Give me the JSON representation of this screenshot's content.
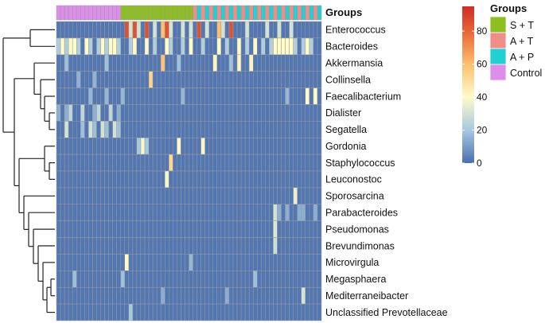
{
  "chart_data": {
    "type": "heatmap",
    "title": "",
    "annotation_title": "Groups",
    "rows": [
      "Enterococcus",
      "Bacteroides",
      "Akkermansia",
      "Collinsella",
      "Faecalibacterium",
      "Dialister",
      "Segatella",
      "Gordonia",
      "Staphylococcus",
      "Leuconostoc",
      "Sporosarcina",
      "Parabacteroides",
      "Pseudomonas",
      "Brevundimonas",
      "Microvirgula",
      "Megasphaera",
      "Mediterraneibacter",
      "Unclassified Prevotellaceae"
    ],
    "n_columns": 66,
    "column_groups": [
      {
        "name": "Control",
        "count": 16,
        "color": "#DC8EEA"
      },
      {
        "name": "S + T",
        "count": 18,
        "color": "#8DBF23"
      },
      {
        "name": "A + T/A + P",
        "count": 32,
        "pattern": [
          "#EF8D88",
          "#22CFD2"
        ]
      }
    ],
    "group_legend": [
      {
        "name": "S + T",
        "color": "#8DBF23"
      },
      {
        "name": "A + T",
        "color": "#EF8D88"
      },
      {
        "name": "A + P",
        "color": "#22CFD2"
      },
      {
        "name": "Control",
        "color": "#DC8EEA"
      }
    ],
    "color_scale": {
      "min": 0,
      "max": 95,
      "ticks": [
        0,
        20,
        40,
        60,
        80
      ],
      "stops": [
        {
          "value": 0,
          "color": "#4A6EAE"
        },
        {
          "value": 20,
          "color": "#A7C9E0"
        },
        {
          "value": 40,
          "color": "#FFFBC9"
        },
        {
          "value": 60,
          "color": "#FDBE6E"
        },
        {
          "value": 80,
          "color": "#E86436"
        },
        {
          "value": 95,
          "color": "#CF2C27"
        }
      ]
    },
    "background_value": 2,
    "highlights": [
      {
        "row": 0,
        "cols": [
          17,
          19,
          22,
          27,
          35,
          43
        ],
        "value": 85
      },
      {
        "row": 0,
        "cols": [
          26,
          40
        ],
        "value": 60
      },
      {
        "row": 0,
        "cols": [
          18,
          20,
          24,
          28,
          31,
          33,
          37,
          41,
          47,
          52,
          55,
          58
        ],
        "value": 30
      },
      {
        "row": 1,
        "cols": [
          1,
          3,
          4,
          7,
          11,
          13,
          14,
          19,
          22,
          27,
          33,
          40,
          45,
          49,
          54,
          55,
          56,
          57,
          58,
          62
        ],
        "value": 40
      },
      {
        "row": 1,
        "cols": [
          0,
          2,
          5,
          8,
          10,
          12,
          15,
          18,
          24,
          28,
          31,
          36,
          42,
          47,
          51,
          53,
          59,
          61,
          63
        ],
        "value": 22
      },
      {
        "row": 2,
        "cols": [
          26
        ],
        "value": 58
      },
      {
        "row": 2,
        "cols": [
          39,
          45,
          48
        ],
        "value": 42
      },
      {
        "row": 2,
        "cols": [
          2,
          12,
          30,
          43
        ],
        "value": 18
      },
      {
        "row": 3,
        "cols": [
          23
        ],
        "value": 52
      },
      {
        "row": 3,
        "cols": [
          5,
          9
        ],
        "value": 15
      },
      {
        "row": 4,
        "cols": [
          62,
          64
        ],
        "value": 40
      },
      {
        "row": 4,
        "cols": [
          8,
          12,
          16,
          31,
          57
        ],
        "value": 16
      },
      {
        "row": 5,
        "cols": [
          3,
          6,
          10,
          13
        ],
        "value": 25
      },
      {
        "row": 5,
        "cols": [
          0,
          2,
          9,
          15
        ],
        "value": 14
      },
      {
        "row": 6,
        "cols": [
          2,
          8,
          11,
          14
        ],
        "value": 30
      },
      {
        "row": 6,
        "cols": [
          6,
          9,
          12,
          15
        ],
        "value": 18
      },
      {
        "row": 7,
        "cols": [
          21,
          30,
          36
        ],
        "value": 38
      },
      {
        "row": 7,
        "cols": [
          20,
          22
        ],
        "value": 20
      },
      {
        "row": 8,
        "cols": [
          28
        ],
        "value": 52
      },
      {
        "row": 9,
        "cols": [
          27
        ],
        "value": 38
      },
      {
        "row": 10,
        "cols": [
          59
        ],
        "value": 35
      },
      {
        "row": 11,
        "cols": [
          54
        ],
        "value": 30
      },
      {
        "row": 11,
        "cols": [
          55,
          57,
          60,
          61,
          64
        ],
        "value": 14
      },
      {
        "row": 12,
        "cols": [
          54
        ],
        "value": 32
      },
      {
        "row": 13,
        "cols": [
          54
        ],
        "value": 28
      },
      {
        "row": 14,
        "cols": [
          17
        ],
        "value": 40
      },
      {
        "row": 14,
        "cols": [
          33
        ],
        "value": 16
      },
      {
        "row": 15,
        "cols": [
          4,
          16,
          49
        ],
        "value": 18
      },
      {
        "row": 16,
        "cols": [
          61
        ],
        "value": 30
      },
      {
        "row": 16,
        "cols": [
          26,
          42
        ],
        "value": 14
      },
      {
        "row": 17,
        "cols": [
          18
        ],
        "value": 20
      }
    ],
    "dendrogram": "row clustering"
  }
}
